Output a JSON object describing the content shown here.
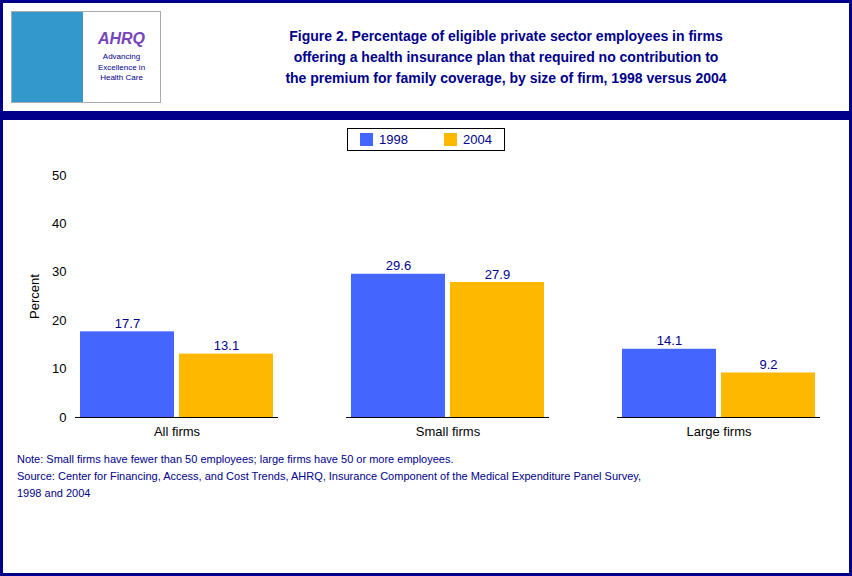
{
  "chart_data": {
    "type": "bar",
    "title": "Figure 2. Percentage of eligible private sector employees in firms\noffering a health insurance plan that required no contribution to\nthe premium for family coverage, by size of firm, 1998 versus 2004",
    "categories": [
      "All firms",
      "Small firms",
      "Large firms"
    ],
    "series": [
      {
        "name": "1998",
        "color": "#4466FF",
        "values": [
          17.7,
          29.6,
          14.1
        ]
      },
      {
        "name": "2004",
        "color": "#FFB800",
        "values": [
          13.1,
          27.9,
          9.2
        ]
      }
    ],
    "ylabel": "Percent",
    "ylim": [
      0,
      50
    ],
    "yticks": [
      0,
      10,
      20,
      30,
      40,
      50
    ],
    "grid": false,
    "legend": "upper center",
    "data_labels": true,
    "annotations": [
      "AHRQ",
      "Advancing\nExcellence in\nHealth Care",
      "Note:  Small firms have fewer than 50 employees; large firms have 50 or more employees.",
      "Source:  Center for Financing, Access, and Cost Trends, AHRQ, Insurance Component of the Medical Expenditure Panel Survey,",
      "1998 and 2004"
    ]
  }
}
